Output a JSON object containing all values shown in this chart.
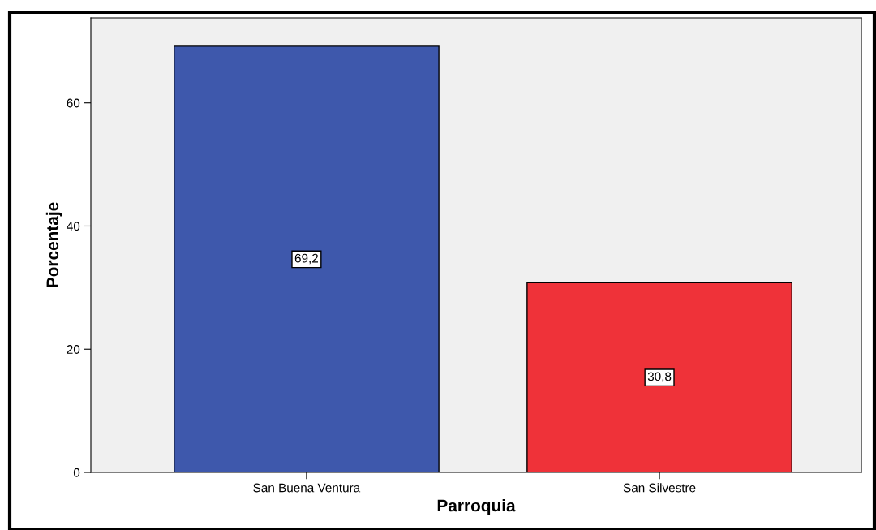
{
  "chart_data": {
    "type": "bar",
    "xlabel": "Parroquia",
    "ylabel": "Porcentaje",
    "categories": [
      "San Buena Ventura",
      "San Silvestre"
    ],
    "values": [
      69.2,
      30.8
    ],
    "colors": [
      "#3e58ac",
      "#ef3239"
    ],
    "value_labels": [
      "69,2",
      "30,8"
    ],
    "ylim": [
      0,
      73.8
    ],
    "yticks": [
      0,
      20,
      40,
      60
    ],
    "grid": false
  }
}
